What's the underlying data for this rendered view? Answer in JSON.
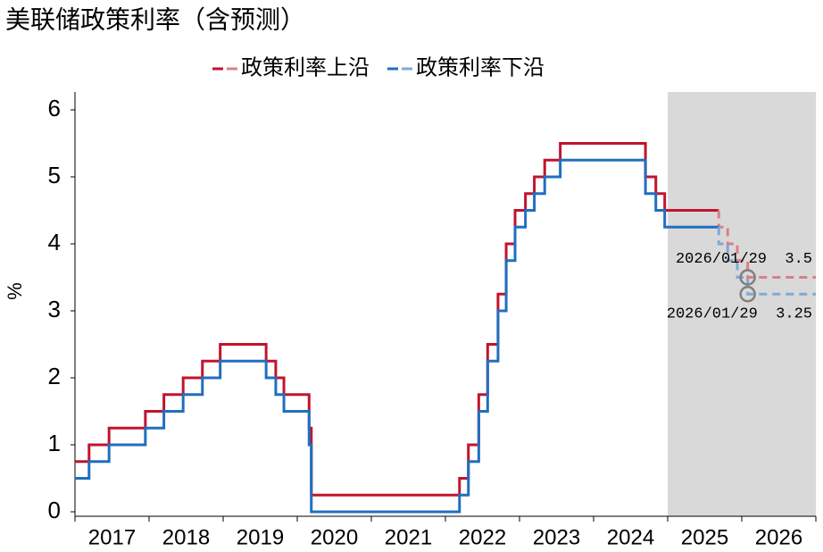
{
  "chart_data": {
    "type": "line",
    "drawstyle": "steps-post",
    "title": "美联储政策利率（含预测）",
    "y_label": "%",
    "x": [
      2017.0,
      2017.19,
      2017.46,
      2017.95,
      2018.2,
      2018.46,
      2018.72,
      2018.96,
      2019.58,
      2019.71,
      2019.82,
      2020.16,
      2020.19,
      2022.19,
      2022.31,
      2022.45,
      2022.57,
      2022.71,
      2022.82,
      2022.94,
      2023.08,
      2023.2,
      2023.34,
      2023.55,
      2024.7,
      2024.84,
      2024.96,
      2025.69,
      2025.81,
      2025.94,
      2026.08,
      2027
    ],
    "series": [
      {
        "name": "政策利率上沿",
        "color": "#c0142f",
        "forecast_color": "#d98087",
        "values": [
          0.75,
          1,
          1.25,
          1.5,
          1.75,
          2,
          2.25,
          2.5,
          2.25,
          2,
          1.75,
          1.25,
          0.25,
          0.5,
          1,
          1.75,
          2.5,
          3.25,
          4,
          4.5,
          4.75,
          5,
          5.25,
          5.5,
          5,
          4.75,
          4.5,
          4.25,
          4,
          3.75,
          3.5,
          3.5
        ]
      },
      {
        "name": "政策利率下沿",
        "color": "#1f6fc0",
        "forecast_color": "#7fa9d6",
        "values": [
          0.5,
          0.75,
          1,
          1.25,
          1.5,
          1.75,
          2,
          2.25,
          2,
          1.75,
          1.5,
          1,
          0,
          0.25,
          0.75,
          1.5,
          2.25,
          3,
          3.75,
          4.25,
          4.5,
          4.75,
          5,
          5.25,
          4.75,
          4.5,
          4.25,
          4,
          3.75,
          3.5,
          3.25,
          3.25
        ]
      }
    ],
    "forecast_start": 2025.69,
    "shade": [
      2025,
      2027
    ],
    "xlim": [
      2017,
      2027
    ],
    "xticks": [
      {
        "value": 2017,
        "label": "2017"
      },
      {
        "value": 2018,
        "label": "2018"
      },
      {
        "value": 2019,
        "label": "2019"
      },
      {
        "value": 2020,
        "label": "2020"
      },
      {
        "value": 2021,
        "label": "2021"
      },
      {
        "value": 2022,
        "label": "2022"
      },
      {
        "value": 2023,
        "label": "2023"
      },
      {
        "value": 2024,
        "label": "2024"
      },
      {
        "value": 2025,
        "label": "2025"
      },
      {
        "value": 2026,
        "label": "2026"
      }
    ],
    "ylim": [
      0,
      6
    ],
    "yticks": [
      0,
      1,
      2,
      3,
      4,
      5,
      6
    ],
    "annotations": [
      {
        "text": "2026/01/29  3.5",
        "x": 2026.08,
        "y": 3.5
      },
      {
        "text": "2026/01/29  3.25",
        "x": 2026.08,
        "y": 3.25
      }
    ]
  }
}
